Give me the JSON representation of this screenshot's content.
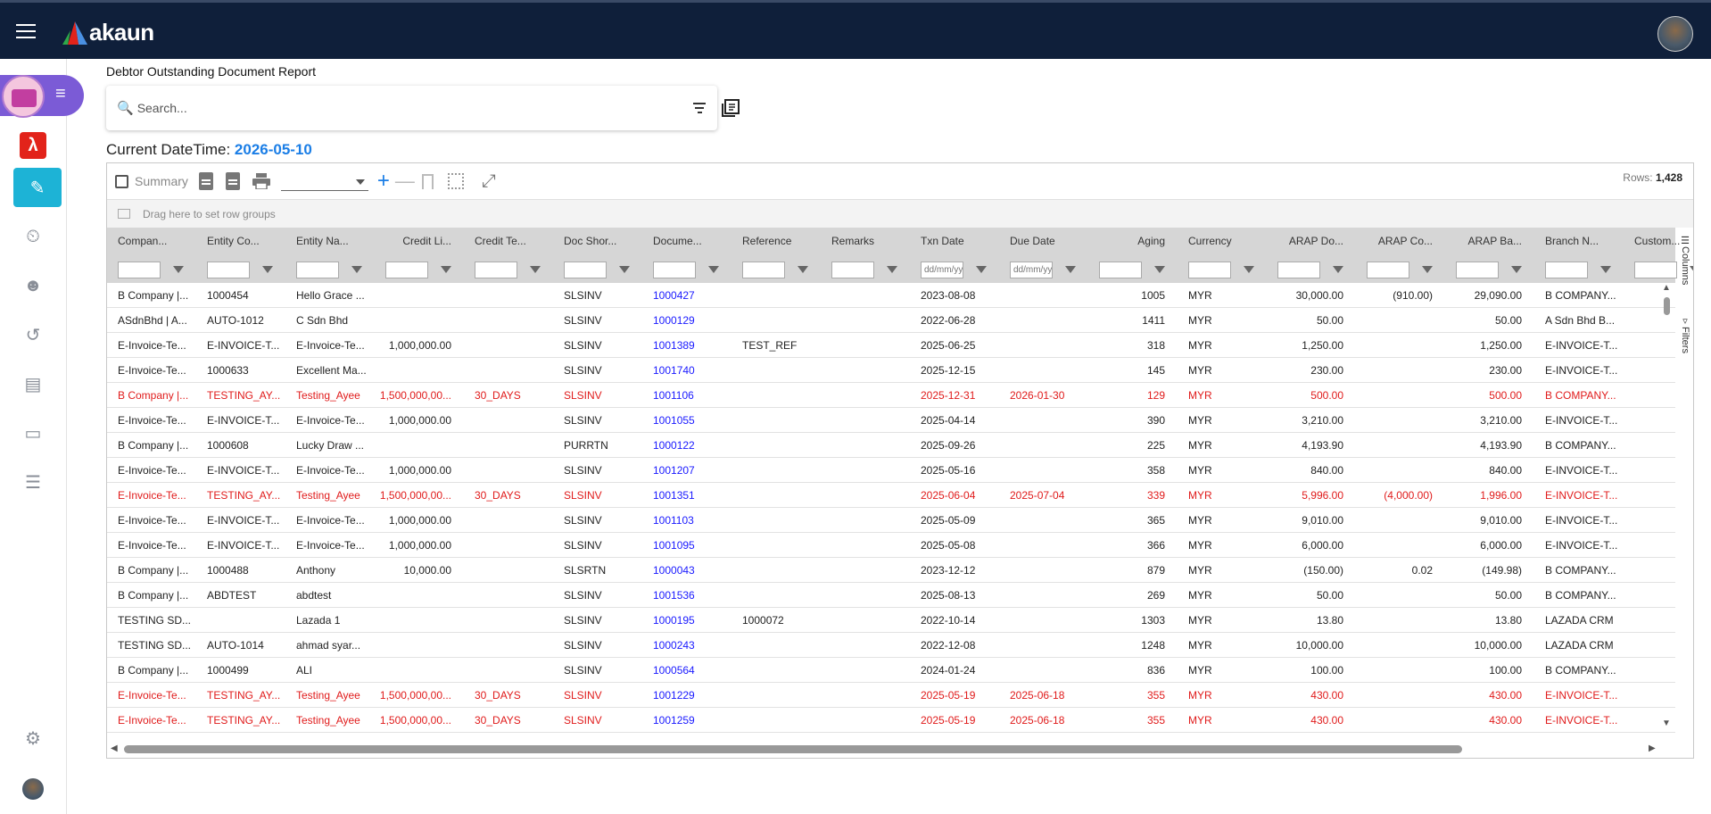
{
  "app": {
    "logo_text": "akaun",
    "brand_colors": {
      "topbar": "#0f1f3a",
      "accent": "#1db3d6",
      "pill": "#7b5bd6"
    }
  },
  "sidebar": {
    "items": [
      {
        "icon": "acrobat-icon"
      },
      {
        "icon": "clipboard-alert-icon",
        "active": true
      },
      {
        "icon": "clipboard-clock-icon"
      },
      {
        "icon": "clipboard-person-icon"
      },
      {
        "icon": "history-icon"
      },
      {
        "icon": "document-icon"
      },
      {
        "icon": "credit-card-icon"
      },
      {
        "icon": "list-box-icon"
      },
      {
        "icon": "settings-icon"
      }
    ]
  },
  "report": {
    "title": "Debtor Outstanding Document Report",
    "search_placeholder": "Search...",
    "datetime_label": "Current DateTime: ",
    "datetime_value": "2026-05-10"
  },
  "toolbar": {
    "summary_label": "Summary",
    "rows_label": "Rows: ",
    "rows_value": "1,428"
  },
  "groupbar": {
    "hint": "Drag here to set row groups"
  },
  "side_tabs": {
    "columns": "Columns",
    "filters": "Filters"
  },
  "columns": [
    "Compan...",
    "Entity Co...",
    "Entity Na...",
    "Credit Li...",
    "Credit Te...",
    "Doc Shor...",
    "Docume...",
    "Reference",
    "Remarks",
    "Txn Date",
    "Due Date",
    "Aging",
    "Currency",
    "ARAP Do...",
    "ARAP Co...",
    "ARAP Ba...",
    "Branch N...",
    "Custom..."
  ],
  "date_placeholder": "dd/mm/yyyy",
  "rows": [
    {
      "red": false,
      "c": [
        "B Company |...",
        "1000454",
        "Hello Grace ...",
        "",
        "",
        "SLSINV",
        "1000427",
        "",
        "",
        "2023-08-08",
        "",
        "1005",
        "MYR",
        "30,000.00",
        "(910.00)",
        "29,090.00",
        "B COMPANY..."
      ]
    },
    {
      "red": false,
      "c": [
        "ASdnBhd | A...",
        "AUTO-1012",
        "C Sdn Bhd",
        "",
        "",
        "SLSINV",
        "1000129",
        "",
        "",
        "2022-06-28",
        "",
        "1411",
        "MYR",
        "50.00",
        "",
        "50.00",
        "A Sdn Bhd B..."
      ]
    },
    {
      "red": false,
      "c": [
        "E-Invoice-Te...",
        "E-INVOICE-T...",
        "E-Invoice-Te...",
        "1,000,000.00",
        "",
        "SLSINV",
        "1001389",
        "TEST_REF",
        "",
        "2025-06-25",
        "",
        "318",
        "MYR",
        "1,250.00",
        "",
        "1,250.00",
        "E-INVOICE-T..."
      ]
    },
    {
      "red": false,
      "c": [
        "E-Invoice-Te...",
        "1000633",
        "Excellent Ma...",
        "",
        "",
        "SLSINV",
        "1001740",
        "",
        "",
        "2025-12-15",
        "",
        "145",
        "MYR",
        "230.00",
        "",
        "230.00",
        "E-INVOICE-T..."
      ]
    },
    {
      "red": true,
      "c": [
        "B Company |...",
        "TESTING_AY...",
        "Testing_Ayee",
        "1,500,000,00...",
        "30_DAYS",
        "SLSINV",
        "1001106",
        "",
        "",
        "2025-12-31",
        "2026-01-30",
        "129",
        "MYR",
        "500.00",
        "",
        "500.00",
        "B COMPANY..."
      ]
    },
    {
      "red": false,
      "c": [
        "E-Invoice-Te...",
        "E-INVOICE-T...",
        "E-Invoice-Te...",
        "1,000,000.00",
        "",
        "SLSINV",
        "1001055",
        "",
        "",
        "2025-04-14",
        "",
        "390",
        "MYR",
        "3,210.00",
        "",
        "3,210.00",
        "E-INVOICE-T..."
      ]
    },
    {
      "red": false,
      "c": [
        "B Company |...",
        "1000608",
        "Lucky Draw ...",
        "",
        "",
        "PURRTN",
        "1000122",
        "",
        "",
        "2025-09-26",
        "",
        "225",
        "MYR",
        "4,193.90",
        "",
        "4,193.90",
        "B COMPANY..."
      ]
    },
    {
      "red": false,
      "c": [
        "E-Invoice-Te...",
        "E-INVOICE-T...",
        "E-Invoice-Te...",
        "1,000,000.00",
        "",
        "SLSINV",
        "1001207",
        "",
        "",
        "2025-05-16",
        "",
        "358",
        "MYR",
        "840.00",
        "",
        "840.00",
        "E-INVOICE-T..."
      ]
    },
    {
      "red": true,
      "c": [
        "E-Invoice-Te...",
        "TESTING_AY...",
        "Testing_Ayee",
        "1,500,000,00...",
        "30_DAYS",
        "SLSINV",
        "1001351",
        "",
        "",
        "2025-06-04",
        "2025-07-04",
        "339",
        "MYR",
        "5,996.00",
        "(4,000.00)",
        "1,996.00",
        "E-INVOICE-T..."
      ]
    },
    {
      "red": false,
      "c": [
        "E-Invoice-Te...",
        "E-INVOICE-T...",
        "E-Invoice-Te...",
        "1,000,000.00",
        "",
        "SLSINV",
        "1001103",
        "",
        "",
        "2025-05-09",
        "",
        "365",
        "MYR",
        "9,010.00",
        "",
        "9,010.00",
        "E-INVOICE-T..."
      ]
    },
    {
      "red": false,
      "c": [
        "E-Invoice-Te...",
        "E-INVOICE-T...",
        "E-Invoice-Te...",
        "1,000,000.00",
        "",
        "SLSINV",
        "1001095",
        "",
        "",
        "2025-05-08",
        "",
        "366",
        "MYR",
        "6,000.00",
        "",
        "6,000.00",
        "E-INVOICE-T..."
      ]
    },
    {
      "red": false,
      "c": [
        "B Company |...",
        "1000488",
        "Anthony",
        "10,000.00",
        "",
        "SLSRTN",
        "1000043",
        "",
        "",
        "2023-12-12",
        "",
        "879",
        "MYR",
        "(150.00)",
        "0.02",
        "(149.98)",
        "B COMPANY..."
      ]
    },
    {
      "red": false,
      "c": [
        "B Company |...",
        "ABDTEST",
        "abdtest",
        "",
        "",
        "SLSINV",
        "1001536",
        "",
        "",
        "2025-08-13",
        "",
        "269",
        "MYR",
        "50.00",
        "",
        "50.00",
        "B COMPANY..."
      ]
    },
    {
      "red": false,
      "c": [
        "TESTING SD...",
        "",
        "Lazada 1",
        "",
        "",
        "SLSINV",
        "1000195",
        "1000072",
        "",
        "2022-10-14",
        "",
        "1303",
        "MYR",
        "13.80",
        "",
        "13.80",
        "LAZADA CRM"
      ]
    },
    {
      "red": false,
      "c": [
        "TESTING SD...",
        "AUTO-1014",
        "ahmad syar...",
        "",
        "",
        "SLSINV",
        "1000243",
        "",
        "",
        "2022-12-08",
        "",
        "1248",
        "MYR",
        "10,000.00",
        "",
        "10,000.00",
        "LAZADA CRM"
      ]
    },
    {
      "red": false,
      "c": [
        "B Company |...",
        "1000499",
        "ALI",
        "",
        "",
        "SLSINV",
        "1000564",
        "",
        "",
        "2024-01-24",
        "",
        "836",
        "MYR",
        "100.00",
        "",
        "100.00",
        "B COMPANY..."
      ]
    },
    {
      "red": true,
      "c": [
        "E-Invoice-Te...",
        "TESTING_AY...",
        "Testing_Ayee",
        "1,500,000,00...",
        "30_DAYS",
        "SLSINV",
        "1001229",
        "",
        "",
        "2025-05-19",
        "2025-06-18",
        "355",
        "MYR",
        "430.00",
        "",
        "430.00",
        "E-INVOICE-T..."
      ]
    },
    {
      "red": true,
      "c": [
        "E-Invoice-Te...",
        "TESTING_AY...",
        "Testing_Ayee",
        "1,500,000,00...",
        "30_DAYS",
        "SLSINV",
        "1001259",
        "",
        "",
        "2025-05-19",
        "2025-06-18",
        "355",
        "MYR",
        "430.00",
        "",
        "430.00",
        "E-INVOICE-T..."
      ]
    }
  ]
}
